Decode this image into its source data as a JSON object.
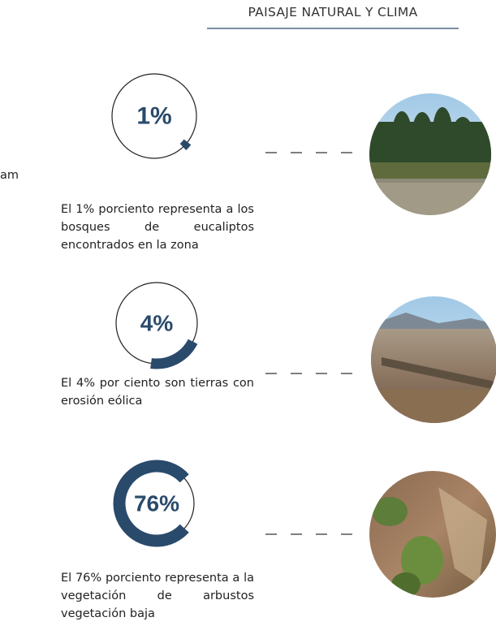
{
  "header": {
    "title": "PAISAJE NATURAL Y CLIMA"
  },
  "fragment": "am",
  "items": [
    {
      "label": "1%",
      "description": "El 1% porciento representa a los bosques de eucaliptos encontrados en la zona"
    },
    {
      "label": "4%",
      "description": "El 4% por ciento son tierras con erosión eólica"
    },
    {
      "label": "76%",
      "description": "El 76% porciento representa a la vegetación de arbustos vegetación baja"
    }
  ]
}
